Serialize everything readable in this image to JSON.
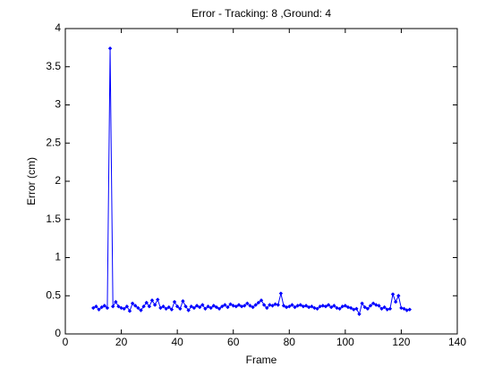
{
  "chart_data": {
    "type": "line",
    "title": "Error - Tracking: 8 ,Ground: 4",
    "x_label": "Frame",
    "y_label": "Error (cm)",
    "x": [
      10,
      11,
      12,
      13,
      14,
      15,
      16,
      17,
      18,
      19,
      20,
      21,
      22,
      23,
      24,
      25,
      26,
      27,
      28,
      29,
      30,
      31,
      32,
      33,
      34,
      35,
      36,
      37,
      38,
      39,
      40,
      41,
      42,
      43,
      44,
      45,
      46,
      47,
      48,
      49,
      50,
      51,
      52,
      53,
      54,
      55,
      56,
      57,
      58,
      59,
      60,
      61,
      62,
      63,
      64,
      65,
      66,
      67,
      68,
      69,
      70,
      71,
      72,
      73,
      74,
      75,
      76,
      77,
      78,
      79,
      80,
      81,
      82,
      83,
      84,
      85,
      86,
      87,
      88,
      89,
      90,
      91,
      92,
      93,
      94,
      95,
      96,
      97,
      98,
      99,
      100,
      101,
      102,
      103,
      104,
      105,
      106,
      107,
      108,
      109,
      110,
      111,
      112,
      113,
      114,
      115,
      116,
      117,
      118,
      119,
      120,
      121,
      122,
      123
    ],
    "series": [
      {
        "color": "#0000ff",
        "values": [
          0.34,
          0.36,
          0.32,
          0.35,
          0.37,
          0.34,
          3.74,
          0.36,
          0.42,
          0.36,
          0.34,
          0.33,
          0.36,
          0.3,
          0.4,
          0.37,
          0.34,
          0.31,
          0.36,
          0.41,
          0.36,
          0.44,
          0.38,
          0.45,
          0.34,
          0.36,
          0.33,
          0.35,
          0.32,
          0.42,
          0.36,
          0.33,
          0.43,
          0.36,
          0.31,
          0.36,
          0.34,
          0.37,
          0.35,
          0.38,
          0.33,
          0.36,
          0.34,
          0.37,
          0.35,
          0.33,
          0.36,
          0.38,
          0.35,
          0.39,
          0.37,
          0.36,
          0.38,
          0.36,
          0.37,
          0.4,
          0.37,
          0.35,
          0.38,
          0.41,
          0.44,
          0.38,
          0.34,
          0.38,
          0.37,
          0.39,
          0.38,
          0.53,
          0.37,
          0.35,
          0.36,
          0.38,
          0.35,
          0.37,
          0.38,
          0.36,
          0.37,
          0.35,
          0.36,
          0.34,
          0.33,
          0.36,
          0.37,
          0.36,
          0.38,
          0.35,
          0.37,
          0.34,
          0.33,
          0.36,
          0.37,
          0.35,
          0.34,
          0.32,
          0.33,
          0.26,
          0.4,
          0.35,
          0.33,
          0.37,
          0.4,
          0.38,
          0.37,
          0.33,
          0.35,
          0.32,
          0.33,
          0.52,
          0.42,
          0.5,
          0.34,
          0.33,
          0.31,
          0.32
        ]
      }
    ],
    "xlim": [
      0,
      140
    ],
    "xticks": [
      0,
      20,
      40,
      60,
      80,
      100,
      120,
      140
    ],
    "ylim": [
      0,
      4
    ],
    "yticks": [
      0,
      0.5,
      1,
      1.5,
      2,
      2.5,
      3,
      3.5,
      4
    ]
  }
}
